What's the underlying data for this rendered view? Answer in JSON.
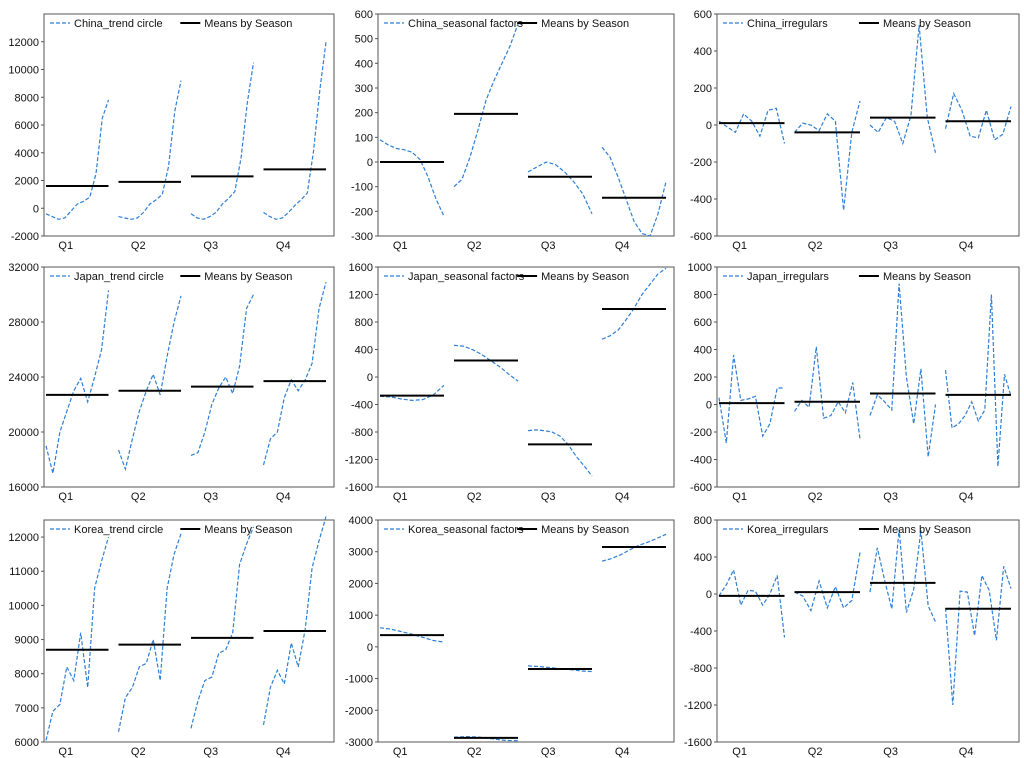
{
  "colors": {
    "series": "#2e7fd6",
    "mean": "#000000",
    "frame": "#555555"
  },
  "legend_mean_label": "Means by Season",
  "chart_data": [
    {
      "type": "line",
      "title": "China_trend circle",
      "legend": [
        "China_trend circle",
        "Means by Season"
      ],
      "categories": [
        "Q1",
        "Q2",
        "Q3",
        "Q4"
      ],
      "ylim": [
        -2000,
        14000
      ],
      "yticks": [
        -2000,
        0,
        2000,
        4000,
        6000,
        8000,
        10000,
        12000
      ],
      "series": [
        {
          "name": "China_trend circle",
          "segments": [
            [
              -400,
              -600,
              -800,
              -700,
              -200,
              300,
              500,
              800,
              2500,
              6500,
              7800
            ],
            [
              -600,
              -700,
              -800,
              -700,
              -300,
              300,
              600,
              1000,
              3000,
              7000,
              9200
            ],
            [
              -400,
              -700,
              -800,
              -600,
              -300,
              300,
              700,
              1200,
              3600,
              7600,
              10500
            ],
            [
              -300,
              -600,
              -800,
              -700,
              -300,
              200,
              600,
              1100,
              4100,
              8500,
              12000
            ]
          ]
        }
      ],
      "means": [
        1600,
        1900,
        2300,
        2800
      ]
    },
    {
      "type": "line",
      "title": "China_seasonal factors",
      "legend": [
        "China_seasonal factors",
        "Means by Season"
      ],
      "categories": [
        "Q1",
        "Q2",
        "Q3",
        "Q4"
      ],
      "ylim": [
        -300,
        600
      ],
      "yticks": [
        -300,
        -200,
        -100,
        0,
        100,
        200,
        300,
        400,
        500,
        600
      ],
      "series": [
        {
          "name": "China_seasonal factors",
          "segments": [
            [
              90,
              70,
              55,
              50,
              40,
              10,
              -60,
              -150,
              -220
            ],
            [
              -100,
              -70,
              20,
              130,
              250,
              330,
              400,
              470,
              560
            ],
            [
              -40,
              -20,
              0,
              -10,
              -40,
              -80,
              -130,
              -210
            ],
            [
              60,
              20,
              -60,
              -150,
              -240,
              -290,
              -300,
              -210,
              -80
            ]
          ]
        }
      ],
      "means": [
        0,
        195,
        -60,
        -145
      ]
    },
    {
      "type": "line",
      "title": "China_irregulars",
      "legend": [
        "China_irregulars",
        "Means by Season"
      ],
      "categories": [
        "Q1",
        "Q2",
        "Q3",
        "Q4"
      ],
      "ylim": [
        -600,
        600
      ],
      "yticks": [
        -600,
        -400,
        -200,
        0,
        200,
        400,
        600
      ],
      "series": [
        {
          "name": "China_irregulars",
          "segments": [
            [
              20,
              -10,
              -40,
              60,
              20,
              -60,
              80,
              90,
              -100
            ],
            [
              -40,
              10,
              0,
              -30,
              60,
              20,
              -460,
              -40,
              130
            ],
            [
              0,
              -40,
              40,
              20,
              -100,
              50,
              540,
              40,
              -150
            ],
            [
              -20,
              170,
              80,
              -60,
              -70,
              80,
              -80,
              -50,
              100
            ]
          ]
        }
      ],
      "means": [
        10,
        -40,
        40,
        20
      ]
    },
    {
      "type": "line",
      "title": "Japan_trend circle",
      "legend": [
        "Japan_trend circle",
        "Means by Season"
      ],
      "categories": [
        "Q1",
        "Q2",
        "Q3",
        "Q4"
      ],
      "ylim": [
        16000,
        32000
      ],
      "yticks": [
        16000,
        20000,
        24000,
        28000,
        32000
      ],
      "series": [
        {
          "name": "Japan_trend circle",
          "segments": [
            [
              19000,
              17000,
              20000,
              21500,
              23000,
              23900,
              22200,
              24000,
              26000,
              30300
            ],
            [
              18700,
              17300,
              19500,
              21500,
              23000,
              24200,
              22700,
              25500,
              28000,
              29900
            ],
            [
              18300,
              18500,
              20000,
              22000,
              23200,
              24000,
              22800,
              24800,
              29000,
              30000
            ],
            [
              17600,
              19500,
              20000,
              22500,
              23800,
              23000,
              23800,
              25000,
              29000,
              30900
            ]
          ]
        }
      ],
      "means": [
        22700,
        23000,
        23300,
        23700
      ]
    },
    {
      "type": "line",
      "title": "Japan_seasonal factors",
      "legend": [
        "Japan_seasonal factors",
        "Means by Season"
      ],
      "categories": [
        "Q1",
        "Q2",
        "Q3",
        "Q4"
      ],
      "ylim": [
        -1600,
        1600
      ],
      "yticks": [
        -1600,
        -1200,
        -800,
        -400,
        0,
        400,
        800,
        1200,
        1600
      ],
      "series": [
        {
          "name": "Japan_seasonal factors",
          "segments": [
            [
              -280,
              -290,
              -320,
              -340,
              -330,
              -260,
              -120
            ],
            [
              460,
              450,
              400,
              330,
              240,
              150,
              40,
              -60
            ],
            [
              -780,
              -770,
              -780,
              -800,
              -860,
              -980,
              -1150,
              -1290,
              -1440
            ],
            [
              550,
              600,
              680,
              830,
              1000,
              1200,
              1350,
              1500,
              1580
            ]
          ]
        }
      ],
      "means": [
        -270,
        240,
        -980,
        990
      ]
    },
    {
      "type": "line",
      "title": "Japan_irregulars",
      "legend": [
        "Japan_irregulars",
        "Means by Season"
      ],
      "categories": [
        "Q1",
        "Q2",
        "Q3",
        "Q4"
      ],
      "ylim": [
        -600,
        1000
      ],
      "yticks": [
        -600,
        -400,
        -200,
        0,
        200,
        400,
        600,
        800,
        1000
      ],
      "series": [
        {
          "name": "Japan_irregulars",
          "segments": [
            [
              50,
              -280,
              360,
              30,
              40,
              60,
              -230,
              -140,
              120,
              120
            ],
            [
              -50,
              30,
              -20,
              420,
              -100,
              -80,
              20,
              -60,
              160,
              -250
            ],
            [
              -80,
              70,
              20,
              -40,
              880,
              200,
              -140,
              260,
              -380,
              0
            ],
            [
              250,
              -170,
              -140,
              -80,
              20,
              -120,
              -40,
              800,
              -450,
              220,
              60
            ]
          ]
        }
      ],
      "means": [
        10,
        20,
        80,
        70
      ]
    },
    {
      "type": "line",
      "title": "Korea_trend circle",
      "legend": [
        "Korea_trend circle",
        "Means by Season"
      ],
      "categories": [
        "Q1",
        "Q2",
        "Q3",
        "Q4"
      ],
      "ylim": [
        6000,
        12500
      ],
      "yticks": [
        6000,
        7000,
        8000,
        9000,
        10000,
        11000,
        12000
      ],
      "series": [
        {
          "name": "Korea_trend circle",
          "segments": [
            [
              6050,
              6900,
              7100,
              8200,
              7800,
              9200,
              7600,
              10500,
              11300,
              12000
            ],
            [
              6300,
              7300,
              7600,
              8200,
              8300,
              9000,
              7800,
              10500,
              11500,
              12100
            ],
            [
              6400,
              7200,
              7800,
              7900,
              8600,
              8700,
              9200,
              11200,
              11800,
              12300
            ],
            [
              6500,
              7600,
              8100,
              7700,
              8900,
              8200,
              9300,
              11100,
              11900,
              12600
            ]
          ]
        }
      ],
      "means": [
        8700,
        8850,
        9050,
        9250
      ]
    },
    {
      "type": "line",
      "title": "Korea_seasonal factors",
      "legend": [
        "Korea_seasonal factors",
        "Means by Season"
      ],
      "categories": [
        "Q1",
        "Q2",
        "Q3",
        "Q4"
      ],
      "ylim": [
        -3000,
        4000
      ],
      "yticks": [
        -3000,
        -2000,
        -1000,
        0,
        1000,
        2000,
        3000,
        4000
      ],
      "series": [
        {
          "name": "Korea_seasonal factors",
          "segments": [
            [
              600,
              560,
              480,
              400,
              300,
              200,
              150
            ],
            [
              -2850,
              -2830,
              -2850,
              -2900,
              -2950,
              -2960
            ],
            [
              -600,
              -620,
              -650,
              -690,
              -720,
              -760,
              -780
            ],
            [
              2700,
              2780,
              2900,
              3050,
              3200,
              3300,
              3420,
              3550
            ]
          ]
        }
      ],
      "means": [
        370,
        -2870,
        -700,
        3150
      ]
    },
    {
      "type": "line",
      "title": "Korea_irregulars",
      "legend": [
        "Korea_irregulars",
        "Means by Season"
      ],
      "categories": [
        "Q1",
        "Q2",
        "Q3",
        "Q4"
      ],
      "ylim": [
        -1600,
        800
      ],
      "yticks": [
        -1600,
        -1200,
        -800,
        -400,
        0,
        400,
        800
      ],
      "series": [
        {
          "name": "Korea_irregulars",
          "segments": [
            [
              -20,
              100,
              260,
              -120,
              40,
              30,
              -120,
              0,
              200,
              -470
            ],
            [
              20,
              -20,
              -180,
              140,
              -150,
              80,
              -150,
              -70,
              450
            ],
            [
              20,
              500,
              150,
              -160,
              700,
              -200,
              50,
              690,
              -130,
              -300
            ],
            [
              -150,
              -1200,
              30,
              20,
              -450,
              200,
              40,
              -500,
              300,
              60
            ]
          ]
        }
      ],
      "means": [
        -20,
        20,
        120,
        -160
      ]
    }
  ]
}
